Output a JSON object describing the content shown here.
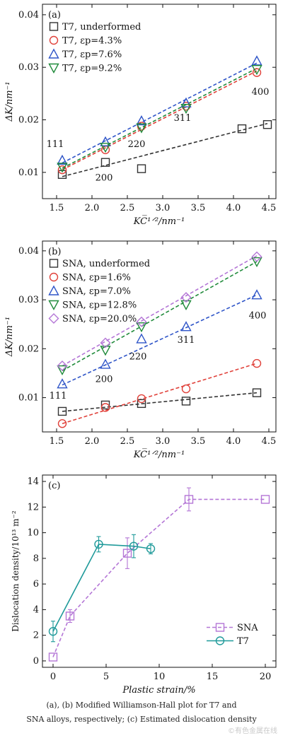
{
  "chart_data": [
    {
      "type": "scatter",
      "panel_label": "(a)",
      "xlabel": "KC̅¹ᐟ²/nm⁻¹",
      "ylabel": "ΔK/nm⁻¹",
      "xlim": [
        1.3,
        4.6
      ],
      "ylim": [
        0.005,
        0.042
      ],
      "xticks": [
        "1.5",
        "2.0",
        "2.5",
        "3.0",
        "3.5",
        "4.0",
        "4.5"
      ],
      "xtick_values": [
        1.5,
        2.0,
        2.5,
        3.0,
        3.5,
        4.0,
        4.5
      ],
      "yticks": [
        "0.01",
        "0.02",
        "0.03",
        "0.04"
      ],
      "ytick_values": [
        0.01,
        0.02,
        0.03,
        0.04
      ],
      "grid": false,
      "legend_position": "top-left",
      "annotations": [
        {
          "text": "111",
          "x": 1.48,
          "y": 0.0148
        },
        {
          "text": "200",
          "x": 2.17,
          "y": 0.0084
        },
        {
          "text": "220",
          "x": 2.63,
          "y": 0.0148
        },
        {
          "text": "311",
          "x": 3.28,
          "y": 0.0198
        },
        {
          "text": "400",
          "x": 4.38,
          "y": 0.0248
        }
      ],
      "series": [
        {
          "name": "T7, underformed",
          "marker": "square",
          "color": "#333333",
          "x": [
            1.58,
            2.19,
            2.7,
            4.12,
            4.48
          ],
          "y": [
            0.0096,
            0.0119,
            0.0107,
            0.0183,
            0.0191
          ],
          "fit": [
            [
              1.58,
              0.0092
            ],
            [
              4.48,
              0.0193
            ]
          ]
        },
        {
          "name": "T7, εp=4.3%",
          "marker": "circle",
          "color": "#e0413a",
          "x": [
            1.58,
            2.19,
            2.7,
            3.33,
            4.33
          ],
          "y": [
            0.0105,
            0.0143,
            0.0188,
            0.0226,
            0.029
          ],
          "fit": [
            [
              1.58,
              0.0105
            ],
            [
              4.33,
              0.0293
            ]
          ]
        },
        {
          "name": "T7, εp=7.6%",
          "marker": "triangle-up",
          "color": "#2f55c8",
          "x": [
            1.58,
            2.19,
            2.7,
            3.33,
            4.33
          ],
          "y": [
            0.0123,
            0.0158,
            0.0198,
            0.0232,
            0.0312
          ],
          "fit": [
            [
              1.58,
              0.0118
            ],
            [
              4.33,
              0.0308
            ]
          ]
        },
        {
          "name": "T7, εp=9.2%",
          "marker": "triangle-down",
          "color": "#1f8a3a",
          "x": [
            1.58,
            2.19,
            2.7,
            3.33,
            4.33
          ],
          "y": [
            0.011,
            0.0148,
            0.0185,
            0.0222,
            0.0296
          ],
          "fit": [
            [
              1.58,
              0.0108
            ],
            [
              4.33,
              0.0298
            ]
          ]
        }
      ]
    },
    {
      "type": "scatter",
      "panel_label": "(b)",
      "xlabel": "KC̅¹ᐟ²/nm⁻¹",
      "ylabel": "ΔK/nm⁻¹",
      "xlim": [
        1.3,
        4.6
      ],
      "ylim": [
        0.003,
        0.042
      ],
      "xticks": [
        "1.5",
        "2.0",
        "2.5",
        "3.0",
        "3.5",
        "4.0",
        "4.5"
      ],
      "xtick_values": [
        1.5,
        2.0,
        2.5,
        3.0,
        3.5,
        4.0,
        4.5
      ],
      "yticks": [
        "0.01",
        "0.02",
        "0.03",
        "0.04"
      ],
      "ytick_values": [
        0.01,
        0.02,
        0.03,
        0.04
      ],
      "grid": false,
      "legend_position": "top-left",
      "annotations": [
        {
          "text": "111",
          "x": 1.52,
          "y": 0.0098
        },
        {
          "text": "200",
          "x": 2.17,
          "y": 0.0132
        },
        {
          "text": "220",
          "x": 2.65,
          "y": 0.0178
        },
        {
          "text": "311",
          "x": 3.33,
          "y": 0.0212
        },
        {
          "text": "400",
          "x": 4.34,
          "y": 0.0262
        }
      ],
      "series": [
        {
          "name": "SNA, underformed",
          "marker": "square",
          "color": "#333333",
          "x": [
            1.58,
            2.19,
            2.7,
            3.33,
            4.33
          ],
          "y": [
            0.0072,
            0.0085,
            0.0088,
            0.0093,
            0.011
          ],
          "fit": [
            [
              1.58,
              0.0072
            ],
            [
              4.33,
              0.011
            ]
          ]
        },
        {
          "name": "SNA, εp=1.6%",
          "marker": "circle",
          "color": "#e0413a",
          "x": [
            1.58,
            2.19,
            2.7,
            3.33,
            4.33
          ],
          "y": [
            0.0047,
            0.008,
            0.0098,
            0.0118,
            0.017
          ],
          "fit": [
            [
              1.58,
              0.0047
            ],
            [
              4.33,
              0.017
            ]
          ]
        },
        {
          "name": "SNA, εp=7.0%",
          "marker": "triangle-up",
          "color": "#2f55c8",
          "x": [
            1.58,
            2.19,
            2.7,
            3.33,
            4.33
          ],
          "y": [
            0.0128,
            0.0168,
            0.022,
            0.0245,
            0.031
          ],
          "fit": [
            [
              1.58,
              0.0126
            ],
            [
              4.33,
              0.031
            ]
          ]
        },
        {
          "name": "SNA, εp=12.8%",
          "marker": "triangle-down",
          "color": "#1f8a3a",
          "x": [
            1.58,
            2.19,
            2.7,
            3.33,
            4.33
          ],
          "y": [
            0.0157,
            0.0197,
            0.0245,
            0.029,
            0.0378
          ],
          "fit": [
            [
              1.58,
              0.0155
            ],
            [
              4.33,
              0.0378
            ]
          ]
        },
        {
          "name": "SNA, εp=20.0%",
          "marker": "diamond",
          "color": "#b476d6",
          "x": [
            1.58,
            2.19,
            2.7,
            3.33,
            4.33
          ],
          "y": [
            0.0165,
            0.0212,
            0.0255,
            0.0305,
            0.0388
          ],
          "fit": [
            [
              1.58,
              0.0165
            ],
            [
              4.33,
              0.039
            ]
          ]
        }
      ]
    },
    {
      "type": "line",
      "panel_label": "(c)",
      "xlabel": "Plastic strain/%",
      "ylabel": "Dislocation density/10¹³ m⁻²",
      "xlim": [
        -1,
        21
      ],
      "ylim": [
        -0.5,
        14.5
      ],
      "xticks": [
        "0",
        "5",
        "10",
        "15",
        "20"
      ],
      "xtick_values": [
        0,
        5,
        10,
        15,
        20
      ],
      "yticks": [
        "0",
        "2",
        "4",
        "6",
        "8",
        "10",
        "12",
        "14"
      ],
      "ytick_values": [
        0,
        2,
        4,
        6,
        8,
        10,
        12,
        14
      ],
      "grid": false,
      "legend_position": "bottom-right",
      "series": [
        {
          "name": "SNA",
          "marker": "square",
          "color": "#b476d6",
          "dashed": true,
          "x": [
            0,
            1.6,
            7.0,
            12.8,
            20.0
          ],
          "y": [
            0.3,
            3.5,
            8.4,
            12.6,
            12.6
          ],
          "err": [
            0,
            0.5,
            1.2,
            0.9,
            0
          ]
        },
        {
          "name": "T7",
          "marker": "circle",
          "color": "#1f9a9a",
          "dashed": false,
          "x": [
            0,
            4.3,
            7.6,
            9.2
          ],
          "y": [
            2.3,
            9.1,
            8.95,
            8.75
          ],
          "err": [
            0.8,
            0.6,
            0.9,
            0.4
          ]
        }
      ]
    }
  ],
  "caption": {
    "line1": "(a), (b) Modified Williamson-Hall plot for T7 and",
    "line2": "SNA alloys, respectively; (c) Estimated dislocation density"
  },
  "watermark": "©有色金属在线"
}
